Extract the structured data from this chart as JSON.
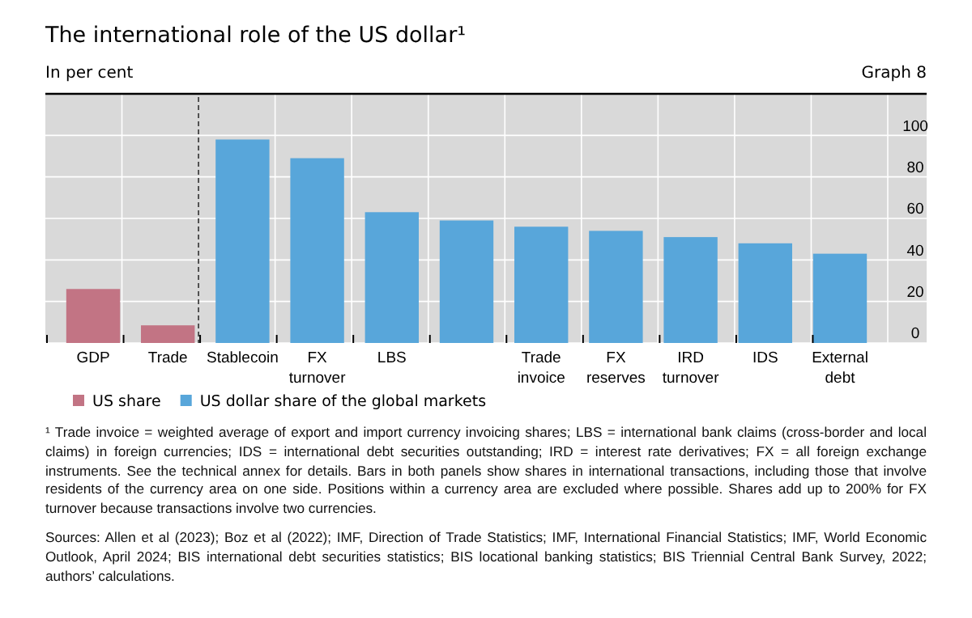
{
  "chart_data": {
    "type": "bar",
    "title": "The international role of the US dollar¹",
    "subtitle": "In per cent",
    "categories": [
      "GDP",
      "Trade",
      "Stablecoin",
      "FX turnover",
      "LBS",
      null,
      "Trade invoice",
      "FX reserves",
      "IRD turnover",
      "IDS",
      "External debt"
    ],
    "series": [
      {
        "name": "US share",
        "color": "#c27484",
        "values": [
          26,
          8.5,
          null,
          null,
          null,
          null,
          null,
          null,
          null,
          null,
          null
        ]
      },
      {
        "name": "US dollar share of the global markets",
        "color": "#58a6da",
        "values": [
          null,
          null,
          98,
          89,
          63,
          59,
          56,
          54,
          51,
          48,
          43
        ]
      }
    ],
    "ylim": [
      0,
      120
    ],
    "yticks": [
      {
        "value": 0,
        "label": "0"
      },
      {
        "value": 20,
        "label": "20"
      },
      {
        "value": 40,
        "label": "40"
      },
      {
        "value": 60,
        "label": "60"
      },
      {
        "value": 80,
        "label": "80"
      },
      {
        "value": 100,
        "label": "100"
      },
      {
        "value": 120,
        "label": null
      }
    ],
    "grid": true,
    "legend": "bottom left",
    "annotations": [
      "Graph 8",
      "¹ Trade invoice = weighted average of export and import currency invoicing shares; LBS = international bank claims (cross-border and local claims) in foreign currencies; IDS = international debt securities outstanding; IRD = interest rate derivatives; FX = all foreign exchange instruments. See the technical annex for details. Bars in both panels show shares in international transactions, including those that involve residents of the currency area on one side. Positions within a currency area are excluded where possible.   Shares add up to 200% for FX turnover because transactions involve two currencies.",
      "Sources: Allen et al (2023); Boz et al (2022); IMF, Direction of Trade Statistics; IMF, International Financial Statistics; IMF, World Economic Outlook, April 2024; BIS international debt securities statistics; BIS locational banking statistics; BIS Triennial Central Bank Survey, 2022; authors’ calculations."
    ]
  }
}
